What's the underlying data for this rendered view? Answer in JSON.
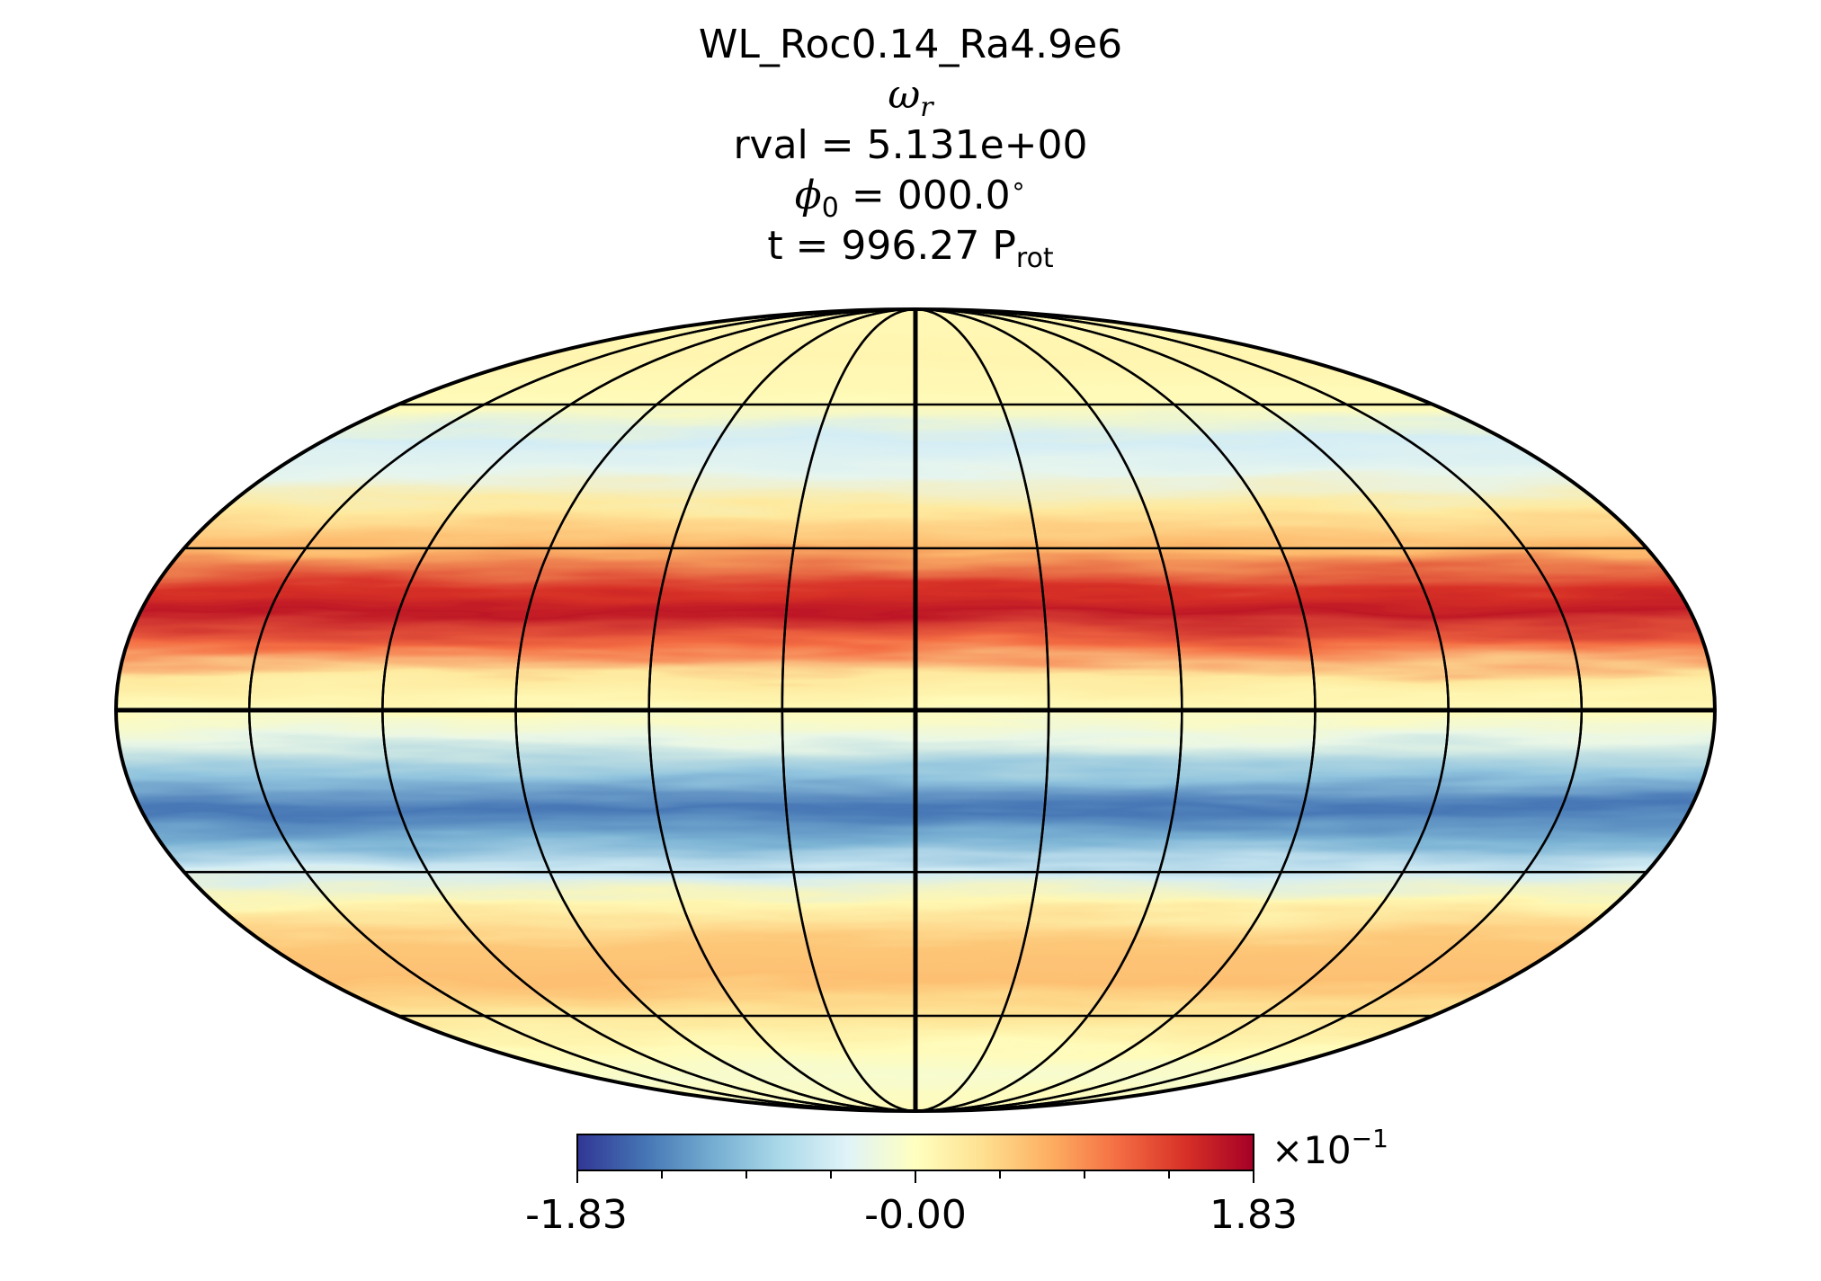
{
  "chart_data": {
    "type": "heatmap",
    "projection": "mollweide",
    "title": {
      "run": "WL_Roc0.14_Ra4.9e6",
      "quantity_symbol": "ω",
      "quantity_sub": "r",
      "rval_label": "rval = 5.131e+00",
      "phi_symbol": "ϕ",
      "phi_sub": "0",
      "phi_value": " = 000.0",
      "phi_degree": "∘",
      "time_prefix": "t = 996.27 P",
      "time_sub": "rot"
    },
    "colorbar": {
      "colormap": "RdYlBu_r",
      "colors": [
        "#313695",
        "#4575b4",
        "#74add1",
        "#abd9e9",
        "#e0f3f8",
        "#ffffbf",
        "#fee090",
        "#fdae61",
        "#f46d43",
        "#d73027",
        "#a50026"
      ],
      "min": -1.83,
      "max": 1.83,
      "tick_labels": [
        "-1.83",
        "-0.00",
        "1.83"
      ],
      "minor_ticks": 7,
      "exponent_label": "×10",
      "exponent_sup": "−1"
    },
    "grid": true,
    "meridian_step_deg": 30,
    "parallel_step_deg": 30,
    "latitude_bands": [
      {
        "lat": 90,
        "value": 0.08
      },
      {
        "lat": 72,
        "value": 0.12
      },
      {
        "lat": 60,
        "value": 0.05
      },
      {
        "lat": 52,
        "value": -0.45
      },
      {
        "lat": 45,
        "value": -0.3
      },
      {
        "lat": 38,
        "value": 0.25
      },
      {
        "lat": 30,
        "value": 0.65
      },
      {
        "lat": 22,
        "value": 1.45
      },
      {
        "lat": 18,
        "value": 1.65
      },
      {
        "lat": 12,
        "value": 1.1
      },
      {
        "lat": 6,
        "value": 0.25
      },
      {
        "lat": 0,
        "value": 0.05
      },
      {
        "lat": -5,
        "value": -0.25
      },
      {
        "lat": -12,
        "value": -0.9
      },
      {
        "lat": -18,
        "value": -1.45
      },
      {
        "lat": -24,
        "value": -1.05
      },
      {
        "lat": -30,
        "value": -0.45
      },
      {
        "lat": -36,
        "value": 0.1
      },
      {
        "lat": -44,
        "value": 0.55
      },
      {
        "lat": -52,
        "value": 0.6
      },
      {
        "lat": -60,
        "value": 0.3
      },
      {
        "lat": -68,
        "value": 0.05
      },
      {
        "lat": -76,
        "value": -0.1
      },
      {
        "lat": -90,
        "value": 0.05
      }
    ]
  }
}
